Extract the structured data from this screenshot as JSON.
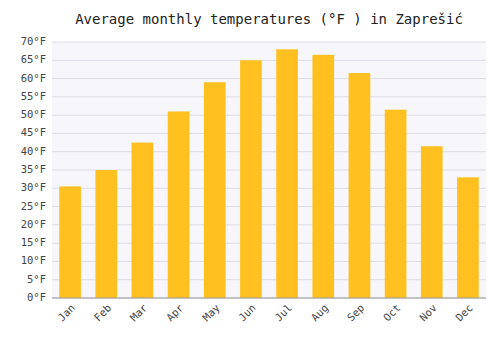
{
  "chart_data": {
    "type": "bar",
    "title": "Average monthly temperatures (°F ) in Zaprešić",
    "categories": [
      "Jan",
      "Feb",
      "Mar",
      "Apr",
      "May",
      "Jun",
      "Jul",
      "Aug",
      "Sep",
      "Oct",
      "Nov",
      "Dec"
    ],
    "values": [
      30.5,
      35.0,
      42.5,
      51.0,
      59.0,
      65.0,
      68.0,
      66.5,
      61.5,
      51.5,
      41.5,
      33.0
    ],
    "color": "#FFC020",
    "ylim": [
      0,
      70
    ],
    "yticks": [
      {
        "value": 0,
        "label": "0°F"
      },
      {
        "value": 5,
        "label": "5°F"
      },
      {
        "value": 10,
        "label": "10°F"
      },
      {
        "value": 15,
        "label": "15°F"
      },
      {
        "value": 20,
        "label": "20°F"
      },
      {
        "value": 25,
        "label": "25°F"
      },
      {
        "value": 30,
        "label": "30°F"
      },
      {
        "value": 35,
        "label": "35°F"
      },
      {
        "value": 40,
        "label": "40°F"
      },
      {
        "value": 45,
        "label": "45°F"
      },
      {
        "value": 50,
        "label": "50°F"
      },
      {
        "value": 55,
        "label": "55°F"
      },
      {
        "value": 60,
        "label": "60°F"
      },
      {
        "value": 65,
        "label": "65°F"
      },
      {
        "value": 70,
        "label": "70°F"
      }
    ],
    "grid": true
  }
}
